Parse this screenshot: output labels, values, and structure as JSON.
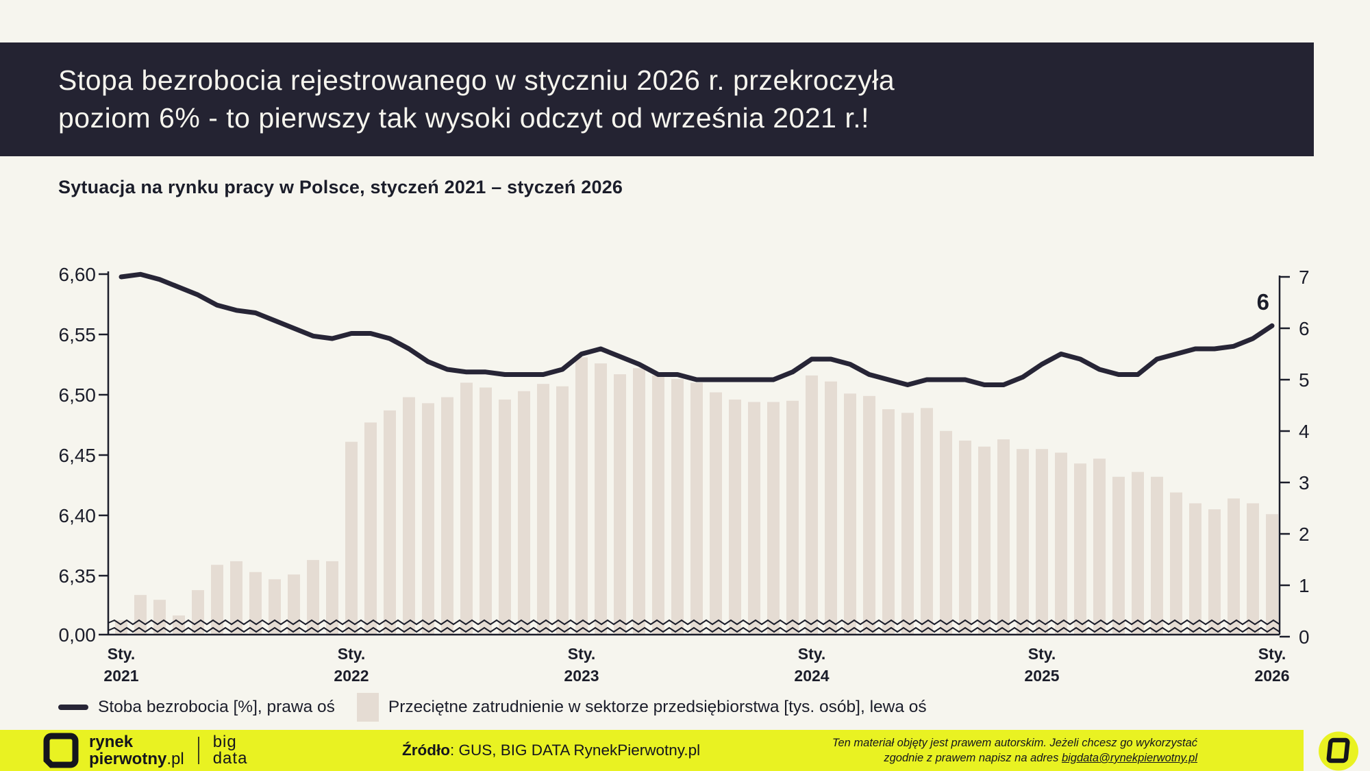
{
  "title": {
    "line1": "Stopa bezrobocia rejestrowanego w styczniu 2026 r. przekroczyła",
    "line2": "poziom 6% - to pierwszy tak wysoki odczyt od września 2021 r.!"
  },
  "subtitle": "Sytuacja na rynku pracy w Polsce, styczeń 2021 – styczeń 2026",
  "chart_data": {
    "type": "bar+line",
    "x_tick_labels": [
      {
        "month": "Sty.",
        "year": "2021"
      },
      {
        "month": "Sty.",
        "year": "2022"
      },
      {
        "month": "Sty.",
        "year": "2023"
      },
      {
        "month": "Sty.",
        "year": "2024"
      },
      {
        "month": "Sty.",
        "year": "2025"
      },
      {
        "month": "Sty.",
        "year": "2026"
      }
    ],
    "left_axis": {
      "ticks": [
        "6,60",
        "6,55",
        "6,50",
        "6,45",
        "6,40",
        "6,35",
        "0,00"
      ],
      "tick_values": [
        6.6,
        6.55,
        6.5,
        6.45,
        6.4,
        6.35,
        0.0
      ],
      "has_break": true
    },
    "right_axis": {
      "ticks": [
        "7",
        "6",
        "5",
        "4",
        "3",
        "2",
        "1",
        "0"
      ],
      "tick_values": [
        7,
        6,
        5,
        4,
        3,
        2,
        1,
        0
      ],
      "range": [
        0,
        7
      ]
    },
    "series": [
      {
        "name": "Przeciętne zatrudnienie w sektorze przedsiębiorstwa [tys. osób], lewa oś",
        "type": "bar",
        "axis": "left",
        "color": "#e5dcd3",
        "values": [
          6.313,
          6.334,
          6.33,
          6.317,
          6.338,
          6.359,
          6.362,
          6.353,
          6.347,
          6.351,
          6.363,
          6.362,
          6.461,
          6.477,
          6.487,
          6.498,
          6.493,
          6.498,
          6.51,
          6.506,
          6.496,
          6.503,
          6.509,
          6.507,
          6.531,
          6.526,
          6.517,
          6.522,
          6.516,
          6.513,
          6.51,
          6.502,
          6.496,
          6.494,
          6.494,
          6.495,
          6.516,
          6.511,
          6.501,
          6.499,
          6.488,
          6.485,
          6.489,
          6.47,
          6.462,
          6.457,
          6.463,
          6.455,
          6.455,
          6.452,
          6.443,
          6.447,
          6.432,
          6.436,
          6.432,
          6.419,
          6.41,
          6.405,
          6.414,
          6.41,
          6.401
        ]
      },
      {
        "name": "Stoba bezrobocia [%], prawa oś",
        "type": "line",
        "axis": "right",
        "color": "#272536",
        "values": [
          7.0,
          7.05,
          6.95,
          6.8,
          6.65,
          6.45,
          6.35,
          6.3,
          6.15,
          6.0,
          5.85,
          5.8,
          5.9,
          5.9,
          5.8,
          5.6,
          5.35,
          5.2,
          5.15,
          5.15,
          5.1,
          5.1,
          5.1,
          5.2,
          5.5,
          5.6,
          5.45,
          5.3,
          5.1,
          5.1,
          5.0,
          5.0,
          5.0,
          5.0,
          5.0,
          5.15,
          5.4,
          5.4,
          5.3,
          5.1,
          5.0,
          4.9,
          5.0,
          5.0,
          5.0,
          4.9,
          4.9,
          5.05,
          5.3,
          5.5,
          5.4,
          5.2,
          5.1,
          5.1,
          5.4,
          5.5,
          5.6,
          5.6,
          5.65,
          5.8,
          6.05
        ]
      }
    ],
    "end_label": "6"
  },
  "legend": {
    "line_label": "Stoba bezrobocia [%], prawa oś",
    "bar_label": "Przeciętne zatrudnienie w sektorze przedsiębiorstwa [tys. osób], lewa oś"
  },
  "footer": {
    "brand_word1": "rynek",
    "brand_word2": "pierwotny",
    "brand_suffix": ".pl",
    "bigdata_word1": "big",
    "bigdata_word2": "data",
    "source_label": "Źródło",
    "source_rest": ": GUS, BIG DATA RynekPierwotny.pl",
    "rights_line1": "Ten materiał objęty jest prawem autorskim. Jeżeli chcesz go wykorzystać",
    "rights_line2_prefix": "zgodnie z prawem napisz na adres ",
    "rights_email": "bigdata@rynekpierwotny.pl"
  },
  "colors": {
    "background": "#f6f5ee",
    "banner": "#242332",
    "bar": "#e5dcd3",
    "line": "#272536",
    "text": "#1b1d2a",
    "footer": "#e9f222"
  }
}
